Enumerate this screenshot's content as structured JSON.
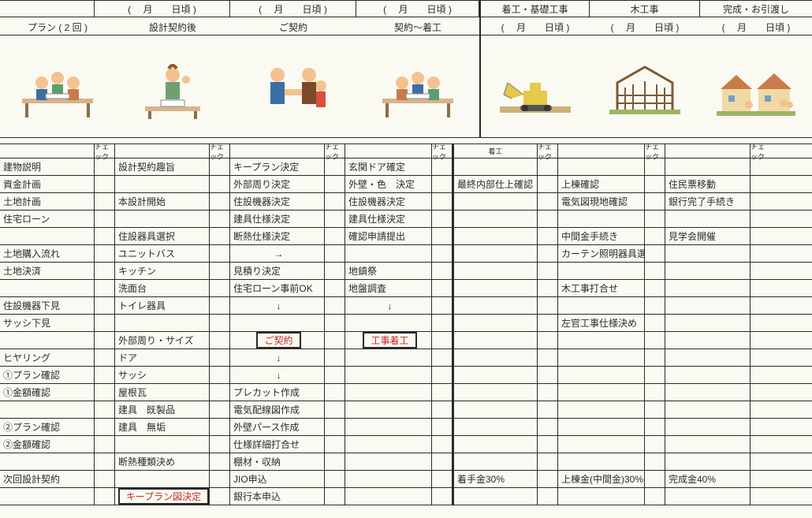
{
  "topDates": [
    "",
    "( 　月　　日頃 )",
    "( 　月　　日頃 )",
    "( 　月　　日頃 )",
    "着工・基礎工事",
    "木工事",
    "完成・お引渡し"
  ],
  "headers": [
    "プラン ( 2 回 )",
    "設計契約後",
    "ご契約",
    "契約～着工",
    "( 　月　　日頃 )",
    "( 　月　　日頃 )",
    "( 　月　　日頃 )"
  ],
  "checkLabel": "チェック",
  "columnsMain": [
    "",
    "",
    "",
    "",
    "着工",
    "",
    ""
  ],
  "rows": [
    [
      "建物説明",
      "",
      "設計契約趣旨",
      "",
      "キープラン決定",
      "",
      "玄関ドア確定",
      "",
      "",
      "",
      "",
      "",
      "",
      ""
    ],
    [
      "資金計画",
      "",
      "",
      "",
      "外部周り決定",
      "",
      "外壁・色　決定",
      "",
      "最終内部仕上確認",
      "",
      "上棟確認",
      "",
      "住民票移動",
      ""
    ],
    [
      "土地計画",
      "",
      "本設計開始",
      "",
      "住設機器決定",
      "",
      "住設機器決定",
      "",
      "",
      "",
      "電気図現地確認",
      "",
      "銀行完了手続き",
      ""
    ],
    [
      "住宅ローン",
      "",
      "",
      "",
      "建具仕様決定",
      "",
      "建具仕様決定",
      "",
      "",
      "",
      "",
      "",
      "",
      ""
    ],
    [
      "",
      "",
      "住設器具選択",
      "",
      "断熱仕様決定",
      "",
      "確認申請提出",
      "",
      "",
      "",
      "中間金手続き",
      "",
      "見学会開催",
      ""
    ],
    [
      "土地購入流れ",
      "",
      "ユニットバス",
      "",
      "→",
      "",
      "",
      "",
      "",
      "",
      "カーテン照明器具選定",
      "",
      "",
      ""
    ],
    [
      "土地決済",
      "",
      "キッチン",
      "",
      "見積り決定",
      "",
      "地鎮祭",
      "",
      "",
      "",
      "",
      "",
      "",
      ""
    ],
    [
      "",
      "",
      "洗面台",
      "",
      "住宅ローン事前OK",
      "",
      "地盤調査",
      "",
      "",
      "",
      "木工事打合せ",
      "",
      "",
      ""
    ],
    [
      "住設機器下見",
      "",
      "トイレ器具",
      "",
      "↓",
      "",
      "↓",
      "",
      "",
      "",
      "",
      "",
      "",
      ""
    ],
    [
      "サッシ下見",
      "",
      "",
      "",
      "",
      "",
      "",
      "",
      "",
      "",
      "左官工事仕様決め",
      "",
      "",
      ""
    ],
    [
      "",
      "",
      "外部周り・サイズ",
      "",
      "[RED_BOX]ご契約",
      "",
      "[RED_BOX]工事着工",
      "",
      "",
      "",
      "",
      "",
      "",
      ""
    ],
    [
      "ヒヤリング",
      "",
      "ドア",
      "",
      "↓",
      "",
      "",
      "",
      "",
      "",
      "",
      "",
      "",
      ""
    ],
    [
      "①プラン確認",
      "",
      "サッシ",
      "",
      "↓",
      "",
      "",
      "",
      "",
      "",
      "",
      "",
      "",
      ""
    ],
    [
      "①金額確認",
      "",
      "屋根瓦",
      "",
      "プレカット作成",
      "",
      "",
      "",
      "",
      "",
      "",
      "",
      "",
      ""
    ],
    [
      "",
      "",
      "建具　既製品",
      "",
      "電気配線図作成",
      "",
      "",
      "",
      "",
      "",
      "",
      "",
      "",
      ""
    ],
    [
      "②プラン確認",
      "",
      "建具　無垢",
      "",
      "外壁パース作成",
      "",
      "",
      "",
      "",
      "",
      "",
      "",
      "",
      ""
    ],
    [
      "②金額確認",
      "",
      "",
      "",
      "仕様詳細打合せ",
      "",
      "",
      "",
      "",
      "",
      "",
      "",
      "",
      ""
    ],
    [
      "",
      "",
      "断熱種類決め",
      "",
      "棚材・収納",
      "",
      "",
      "",
      "",
      "",
      "",
      "",
      "",
      ""
    ],
    [
      "次回設計契約",
      "",
      "",
      "",
      "JIO申込",
      "",
      "",
      "",
      "着手金30%",
      "",
      "上棟金(中間金)30%",
      "",
      "完成金40%",
      ""
    ],
    [
      "",
      "",
      "[RED_BOX]キープラン図決定",
      "",
      "銀行本申込",
      "",
      "",
      "",
      "",
      "",
      "",
      "",
      "",
      ""
    ]
  ],
  "colWidths": {
    "main": 120,
    "chk": 26
  }
}
